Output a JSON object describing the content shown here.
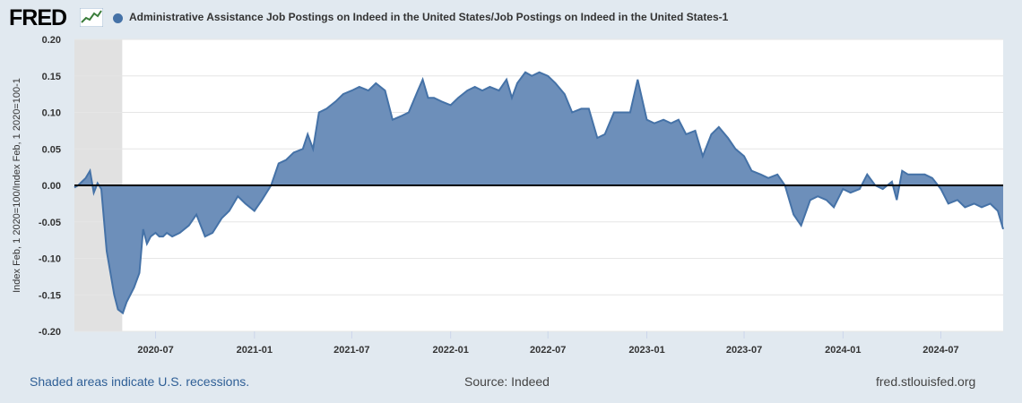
{
  "header": {
    "logo_text": "FRED",
    "series_title": "Administrative Assistance Job Postings on Indeed in the United States/Job Postings on Indeed in the United States-1"
  },
  "footer": {
    "recession_note": "Shaded areas indicate U.S. recessions.",
    "source": "Source: Indeed",
    "site": "fred.stlouisfed.org"
  },
  "colors": {
    "series": "#4572a7",
    "fill": "#6d8fba",
    "background": "#e1e9f0",
    "plot": "#ffffff",
    "recession": "#e1e1e1"
  },
  "chart_data": {
    "type": "area",
    "ylabel": "Index Feb, 1 2020=100/Index Feb, 1 2020=100-1",
    "ylim": [
      -0.2,
      0.2
    ],
    "yticks": [
      "0.20",
      "0.15",
      "0.10",
      "0.05",
      "0.00",
      "-0.05",
      "-0.10",
      "-0.15",
      "-0.20"
    ],
    "xlim": [
      "2020-02-01",
      "2024-10-25"
    ],
    "xticks": [
      "2020-07",
      "2021-01",
      "2021-07",
      "2022-01",
      "2022-07",
      "2023-01",
      "2023-07",
      "2024-01",
      "2024-07"
    ],
    "grid": true,
    "recession": [
      "2020-02-01",
      "2020-04-30"
    ],
    "baseline": 0,
    "series": [
      {
        "points": [
          [
            "2020-02-01",
            -0.003
          ],
          [
            "2020-02-08",
            0.0
          ],
          [
            "2020-02-15",
            0.005
          ],
          [
            "2020-02-22",
            0.01
          ],
          [
            "2020-03-01",
            0.02
          ],
          [
            "2020-03-08",
            -0.01
          ],
          [
            "2020-03-15",
            0.003
          ],
          [
            "2020-03-22",
            -0.005
          ],
          [
            "2020-04-01",
            -0.09
          ],
          [
            "2020-04-08",
            -0.12
          ],
          [
            "2020-04-15",
            -0.15
          ],
          [
            "2020-04-22",
            -0.17
          ],
          [
            "2020-05-01",
            -0.175
          ],
          [
            "2020-05-08",
            -0.16
          ],
          [
            "2020-05-15",
            -0.15
          ],
          [
            "2020-05-22",
            -0.14
          ],
          [
            "2020-06-01",
            -0.12
          ],
          [
            "2020-06-08",
            -0.06
          ],
          [
            "2020-06-15",
            -0.08
          ],
          [
            "2020-06-22",
            -0.07
          ],
          [
            "2020-07-01",
            -0.065
          ],
          [
            "2020-07-08",
            -0.07
          ],
          [
            "2020-07-15",
            -0.07
          ],
          [
            "2020-07-22",
            -0.065
          ],
          [
            "2020-08-01",
            -0.07
          ],
          [
            "2020-08-15",
            -0.065
          ],
          [
            "2020-09-01",
            -0.055
          ],
          [
            "2020-09-15",
            -0.04
          ],
          [
            "2020-10-01",
            -0.07
          ],
          [
            "2020-10-15",
            -0.065
          ],
          [
            "2020-11-01",
            -0.045
          ],
          [
            "2020-11-15",
            -0.035
          ],
          [
            "2020-12-01",
            -0.015
          ],
          [
            "2020-12-15",
            -0.025
          ],
          [
            "2021-01-01",
            -0.035
          ],
          [
            "2021-01-15",
            -0.02
          ],
          [
            "2021-02-01",
            0.0
          ],
          [
            "2021-02-15",
            0.03
          ],
          [
            "2021-03-01",
            0.035
          ],
          [
            "2021-03-15",
            0.045
          ],
          [
            "2021-04-01",
            0.05
          ],
          [
            "2021-04-10",
            0.07
          ],
          [
            "2021-04-20",
            0.05
          ],
          [
            "2021-05-01",
            0.1
          ],
          [
            "2021-05-15",
            0.105
          ],
          [
            "2021-06-01",
            0.115
          ],
          [
            "2021-06-15",
            0.125
          ],
          [
            "2021-07-01",
            0.13
          ],
          [
            "2021-07-15",
            0.135
          ],
          [
            "2021-08-01",
            0.13
          ],
          [
            "2021-08-15",
            0.14
          ],
          [
            "2021-09-01",
            0.13
          ],
          [
            "2021-09-15",
            0.09
          ],
          [
            "2021-10-01",
            0.095
          ],
          [
            "2021-10-15",
            0.1
          ],
          [
            "2021-11-01",
            0.13
          ],
          [
            "2021-11-10",
            0.145
          ],
          [
            "2021-11-20",
            0.12
          ],
          [
            "2021-12-01",
            0.12
          ],
          [
            "2021-12-15",
            0.115
          ],
          [
            "2022-01-01",
            0.11
          ],
          [
            "2022-01-15",
            0.12
          ],
          [
            "2022-02-01",
            0.13
          ],
          [
            "2022-02-15",
            0.135
          ],
          [
            "2022-03-01",
            0.13
          ],
          [
            "2022-03-15",
            0.135
          ],
          [
            "2022-04-01",
            0.13
          ],
          [
            "2022-04-15",
            0.145
          ],
          [
            "2022-04-25",
            0.12
          ],
          [
            "2022-05-05",
            0.14
          ],
          [
            "2022-05-20",
            0.155
          ],
          [
            "2022-06-01",
            0.15
          ],
          [
            "2022-06-15",
            0.155
          ],
          [
            "2022-07-01",
            0.15
          ],
          [
            "2022-07-15",
            0.14
          ],
          [
            "2022-08-01",
            0.125
          ],
          [
            "2022-08-15",
            0.1
          ],
          [
            "2022-09-01",
            0.105
          ],
          [
            "2022-09-15",
            0.105
          ],
          [
            "2022-10-01",
            0.065
          ],
          [
            "2022-10-15",
            0.07
          ],
          [
            "2022-11-01",
            0.1
          ],
          [
            "2022-11-15",
            0.1
          ],
          [
            "2022-12-01",
            0.1
          ],
          [
            "2022-12-15",
            0.145
          ],
          [
            "2023-01-01",
            0.09
          ],
          [
            "2023-01-15",
            0.085
          ],
          [
            "2023-02-01",
            0.09
          ],
          [
            "2023-02-15",
            0.085
          ],
          [
            "2023-03-01",
            0.09
          ],
          [
            "2023-03-15",
            0.07
          ],
          [
            "2023-04-01",
            0.075
          ],
          [
            "2023-04-15",
            0.04
          ],
          [
            "2023-05-01",
            0.07
          ],
          [
            "2023-05-15",
            0.08
          ],
          [
            "2023-06-01",
            0.065
          ],
          [
            "2023-06-15",
            0.05
          ],
          [
            "2023-07-01",
            0.04
          ],
          [
            "2023-07-15",
            0.02
          ],
          [
            "2023-08-01",
            0.015
          ],
          [
            "2023-08-15",
            0.01
          ],
          [
            "2023-09-01",
            0.015
          ],
          [
            "2023-09-15",
            0.0
          ],
          [
            "2023-10-01",
            -0.04
          ],
          [
            "2023-10-15",
            -0.055
          ],
          [
            "2023-11-01",
            -0.02
          ],
          [
            "2023-11-15",
            -0.015
          ],
          [
            "2023-12-01",
            -0.02
          ],
          [
            "2023-12-15",
            -0.03
          ],
          [
            "2024-01-01",
            -0.005
          ],
          [
            "2024-01-15",
            -0.01
          ],
          [
            "2024-02-01",
            -0.005
          ],
          [
            "2024-02-15",
            0.015
          ],
          [
            "2024-03-01",
            0.0
          ],
          [
            "2024-03-15",
            -0.005
          ],
          [
            "2024-04-01",
            0.005
          ],
          [
            "2024-04-10",
            -0.02
          ],
          [
            "2024-04-20",
            0.02
          ],
          [
            "2024-05-01",
            0.015
          ],
          [
            "2024-05-15",
            0.015
          ],
          [
            "2024-06-01",
            0.015
          ],
          [
            "2024-06-15",
            0.01
          ],
          [
            "2024-07-01",
            -0.005
          ],
          [
            "2024-07-15",
            -0.025
          ],
          [
            "2024-08-01",
            -0.02
          ],
          [
            "2024-08-15",
            -0.03
          ],
          [
            "2024-09-01",
            -0.025
          ],
          [
            "2024-09-15",
            -0.03
          ],
          [
            "2024-10-01",
            -0.025
          ],
          [
            "2024-10-15",
            -0.035
          ],
          [
            "2024-10-25",
            -0.06
          ]
        ]
      }
    ]
  }
}
